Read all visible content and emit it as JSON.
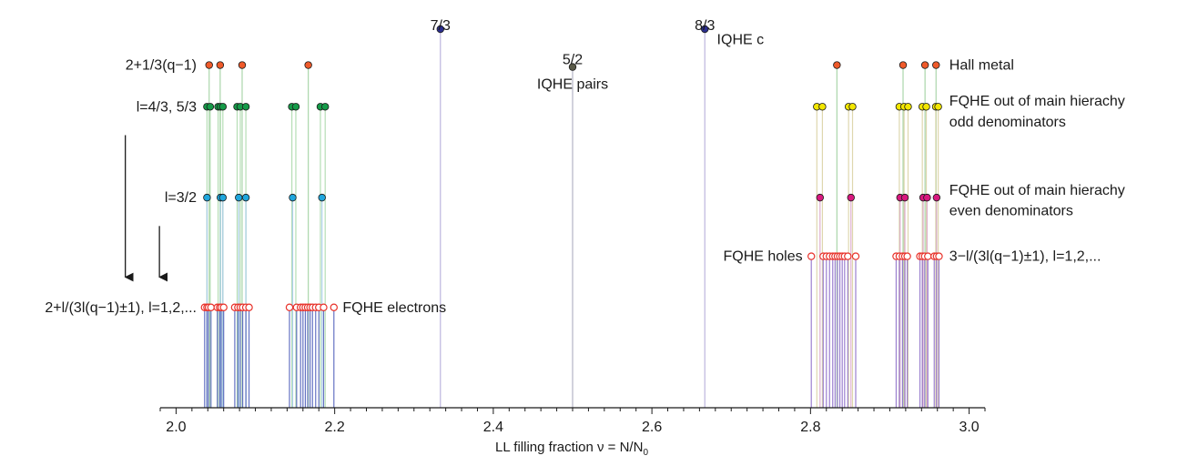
{
  "chart_data": {
    "type": "scatter",
    "title": "",
    "xlabel": "LL filling fraction ν = N/N",
    "xlabel_sub": "0",
    "xlim": [
      1.98,
      3.02
    ],
    "ylim": [
      0,
      10
    ],
    "xticks": [
      {
        "value": 2.0,
        "label": "2.0"
      },
      {
        "value": 2.2,
        "label": "2.2"
      },
      {
        "value": 2.4,
        "label": "2.4"
      },
      {
        "value": 2.6,
        "label": "2.6"
      },
      {
        "value": 2.8,
        "label": "2.8"
      },
      {
        "value": 3.0,
        "label": "3.0"
      }
    ],
    "grid": false,
    "legend": "none",
    "row_labels": [
      {
        "text": "2+1/3(q−1)",
        "y": 9.05
      },
      {
        "text": "l=4/3, 5/3",
        "y": 7.95
      },
      {
        "text": "l=3/2",
        "y": 5.55
      },
      {
        "text": "2+l/(3l(q−1)±1), l=1,2,...",
        "y": 2.65
      }
    ],
    "annotations": [
      {
        "text": "7/3",
        "x": 2.3333,
        "y": 10.1,
        "anchor": "middle"
      },
      {
        "text": "5/2",
        "x": 2.5,
        "y": 9.2,
        "anchor": "middle"
      },
      {
        "text": "8/3",
        "x": 2.6667,
        "y": 10.1,
        "anchor": "middle"
      },
      {
        "text": "IQHE c",
        "x": 2.682,
        "y": 9.72,
        "anchor": "start"
      },
      {
        "text": "IQHE pairs",
        "x": 2.5,
        "y": 8.55,
        "anchor": "middle"
      },
      {
        "text": "Hall metal",
        "x": 2.975,
        "y": 9.05,
        "anchor": "start"
      },
      {
        "text": "FQHE out of main hierachy",
        "x": 2.975,
        "y": 8.1,
        "anchor": "start"
      },
      {
        "text": "odd denominators",
        "x": 2.975,
        "y": 7.55,
        "anchor": "start"
      },
      {
        "text": "FQHE out of main hierachy",
        "x": 2.975,
        "y": 5.75,
        "anchor": "start"
      },
      {
        "text": "even denominators",
        "x": 2.975,
        "y": 5.2,
        "anchor": "start"
      },
      {
        "text": "FQHE holes",
        "x": 2.79,
        "y": 4.0,
        "anchor": "end"
      },
      {
        "text": "3−l/(3l(q−1)±1), l=1,2,...",
        "x": 2.975,
        "y": 4.0,
        "anchor": "start"
      },
      {
        "text": "FQHE electrons",
        "x": 2.21,
        "y": 2.65,
        "anchor": "start"
      }
    ],
    "arrows": [
      {
        "x": 1.936,
        "y_from": 7.2,
        "y_to": 3.45
      },
      {
        "x": 1.979,
        "y_from": 4.8,
        "y_to": 3.45
      }
    ],
    "series": [
      {
        "marker": "filled",
        "color": "#2b2e8f",
        "stem_color": "#b0a8d8",
        "points": [
          {
            "x": 2.3333,
            "y": 10.0
          },
          {
            "x": 2.6667,
            "y": 10.0
          }
        ]
      },
      {
        "marker": "filled",
        "color": "#5a5a48",
        "stem_color": "#a8a8bc",
        "points": [
          {
            "x": 2.5,
            "y": 9.0
          }
        ]
      },
      {
        "marker": "filled",
        "color": "#ef5a2a",
        "stem_color": "#9ccf9c",
        "points": [
          {
            "x": 2.0417,
            "y": 9.05
          },
          {
            "x": 2.0556,
            "y": 9.05
          },
          {
            "x": 2.0833,
            "y": 9.05
          },
          {
            "x": 2.1667,
            "y": 9.05
          },
          {
            "x": 2.8333,
            "y": 9.05
          },
          {
            "x": 2.9167,
            "y": 9.05
          },
          {
            "x": 2.9444,
            "y": 9.05
          },
          {
            "x": 2.9583,
            "y": 9.05
          }
        ]
      },
      {
        "marker": "filled",
        "color": "#159a48",
        "stem_color": "#a8d8a8",
        "points": [
          {
            "x": 2.039,
            "y": 7.95
          },
          {
            "x": 2.043,
            "y": 7.95
          },
          {
            "x": 2.053,
            "y": 7.95
          },
          {
            "x": 2.056,
            "y": 7.95
          },
          {
            "x": 2.059,
            "y": 7.95
          },
          {
            "x": 2.077,
            "y": 7.95
          },
          {
            "x": 2.081,
            "y": 7.95
          },
          {
            "x": 2.088,
            "y": 7.95
          },
          {
            "x": 2.146,
            "y": 7.95
          },
          {
            "x": 2.151,
            "y": 7.95
          },
          {
            "x": 2.182,
            "y": 7.95
          },
          {
            "x": 2.188,
            "y": 7.95
          }
        ]
      },
      {
        "marker": "filled",
        "color": "#f2e600",
        "stem_color": "#d8d0a0",
        "points": [
          {
            "x": 2.808,
            "y": 7.95
          },
          {
            "x": 2.815,
            "y": 7.95
          },
          {
            "x": 2.848,
            "y": 7.95
          },
          {
            "x": 2.853,
            "y": 7.95
          },
          {
            "x": 2.912,
            "y": 7.95
          },
          {
            "x": 2.918,
            "y": 7.95
          },
          {
            "x": 2.923,
            "y": 7.95
          },
          {
            "x": 2.941,
            "y": 7.95
          },
          {
            "x": 2.946,
            "y": 7.95
          },
          {
            "x": 2.958,
            "y": 7.95
          },
          {
            "x": 2.961,
            "y": 7.95
          }
        ]
      },
      {
        "marker": "filled",
        "color": "#1fa6dc",
        "stem_color": "#a0c8e8",
        "points": [
          {
            "x": 2.039,
            "y": 5.55
          },
          {
            "x": 2.056,
            "y": 5.55
          },
          {
            "x": 2.059,
            "y": 5.55
          },
          {
            "x": 2.079,
            "y": 5.55
          },
          {
            "x": 2.088,
            "y": 5.55
          },
          {
            "x": 2.147,
            "y": 5.55
          },
          {
            "x": 2.184,
            "y": 5.55
          }
        ]
      },
      {
        "marker": "filled",
        "color": "#d8197e",
        "stem_color": "#d8a0c8",
        "points": [
          {
            "x": 2.812,
            "y": 5.55
          },
          {
            "x": 2.851,
            "y": 5.55
          },
          {
            "x": 2.913,
            "y": 5.55
          },
          {
            "x": 2.919,
            "y": 5.55
          },
          {
            "x": 2.942,
            "y": 5.55
          },
          {
            "x": 2.947,
            "y": 5.55
          },
          {
            "x": 2.959,
            "y": 5.55
          }
        ]
      },
      {
        "marker": "open",
        "color": "#e8322a",
        "stem_color": "#4a5bb8",
        "points": [
          {
            "x": 2.036,
            "y": 2.65
          },
          {
            "x": 2.039,
            "y": 2.65
          },
          {
            "x": 2.041,
            "y": 2.65
          },
          {
            "x": 2.044,
            "y": 2.65
          },
          {
            "x": 2.052,
            "y": 2.65
          },
          {
            "x": 2.055,
            "y": 2.65
          },
          {
            "x": 2.057,
            "y": 2.65
          },
          {
            "x": 2.06,
            "y": 2.65
          },
          {
            "x": 2.074,
            "y": 2.65
          },
          {
            "x": 2.078,
            "y": 2.65
          },
          {
            "x": 2.081,
            "y": 2.65
          },
          {
            "x": 2.084,
            "y": 2.65
          },
          {
            "x": 2.088,
            "y": 2.65
          },
          {
            "x": 2.092,
            "y": 2.65
          },
          {
            "x": 2.143,
            "y": 2.65
          },
          {
            "x": 2.152,
            "y": 2.65
          },
          {
            "x": 2.157,
            "y": 2.65
          },
          {
            "x": 2.16,
            "y": 2.65
          },
          {
            "x": 2.163,
            "y": 2.65
          },
          {
            "x": 2.166,
            "y": 2.65
          },
          {
            "x": 2.169,
            "y": 2.65
          },
          {
            "x": 2.172,
            "y": 2.65
          },
          {
            "x": 2.176,
            "y": 2.65
          },
          {
            "x": 2.18,
            "y": 2.65
          },
          {
            "x": 2.186,
            "y": 2.65
          },
          {
            "x": 2.199,
            "y": 2.65
          }
        ]
      },
      {
        "marker": "open",
        "color": "#e8322a",
        "stem_color": "#8a6ac8",
        "points": [
          {
            "x": 2.801,
            "y": 4.0
          },
          {
            "x": 2.816,
            "y": 4.0
          },
          {
            "x": 2.82,
            "y": 4.0
          },
          {
            "x": 2.824,
            "y": 4.0
          },
          {
            "x": 2.828,
            "y": 4.0
          },
          {
            "x": 2.831,
            "y": 4.0
          },
          {
            "x": 2.834,
            "y": 4.0
          },
          {
            "x": 2.837,
            "y": 4.0
          },
          {
            "x": 2.84,
            "y": 4.0
          },
          {
            "x": 2.843,
            "y": 4.0
          },
          {
            "x": 2.847,
            "y": 4.0
          },
          {
            "x": 2.857,
            "y": 4.0
          },
          {
            "x": 2.908,
            "y": 4.0
          },
          {
            "x": 2.912,
            "y": 4.0
          },
          {
            "x": 2.916,
            "y": 4.0
          },
          {
            "x": 2.919,
            "y": 4.0
          },
          {
            "x": 2.922,
            "y": 4.0
          },
          {
            "x": 2.938,
            "y": 4.0
          },
          {
            "x": 2.941,
            "y": 4.0
          },
          {
            "x": 2.944,
            "y": 4.0
          },
          {
            "x": 2.948,
            "y": 4.0
          },
          {
            "x": 2.956,
            "y": 4.0
          },
          {
            "x": 2.959,
            "y": 4.0
          },
          {
            "x": 2.962,
            "y": 4.0
          }
        ]
      }
    ]
  }
}
